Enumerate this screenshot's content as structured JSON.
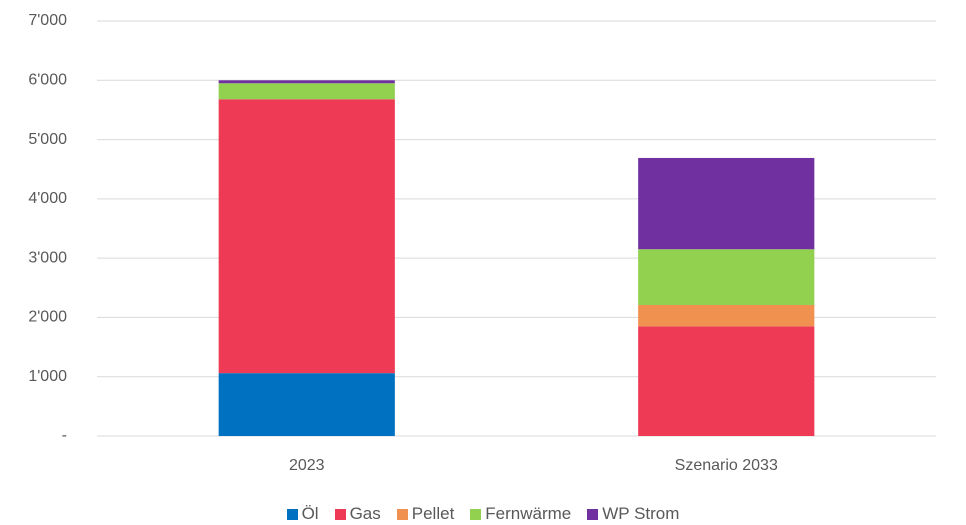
{
  "chart_data": {
    "type": "stacked_bar",
    "categories": [
      "2023",
      "Szenario 2033"
    ],
    "series": [
      {
        "name": "Öl",
        "color": "#0070c0",
        "values": [
          1060,
          0
        ]
      },
      {
        "name": "Gas",
        "color": "#ee3a55",
        "values": [
          4620,
          1850
        ]
      },
      {
        "name": "Pellet",
        "color": "#f0914f",
        "values": [
          0,
          360
        ]
      },
      {
        "name": "Fernwärme",
        "color": "#92d050",
        "values": [
          270,
          940
        ]
      },
      {
        "name": "WP Strom",
        "color": "#7030a0",
        "values": [
          50,
          1540
        ]
      }
    ],
    "ylim": [
      0,
      7000
    ],
    "yticks": [
      {
        "value": 0,
        "label": "-"
      },
      {
        "value": 1000,
        "label": "1'000"
      },
      {
        "value": 2000,
        "label": "2'000"
      },
      {
        "value": 3000,
        "label": "3'000"
      },
      {
        "value": 4000,
        "label": "4'000"
      },
      {
        "value": 5000,
        "label": "5'000"
      },
      {
        "value": 6000,
        "label": "6'000"
      },
      {
        "value": 7000,
        "label": "7'000"
      }
    ],
    "grid": true,
    "legend": "bottom"
  }
}
